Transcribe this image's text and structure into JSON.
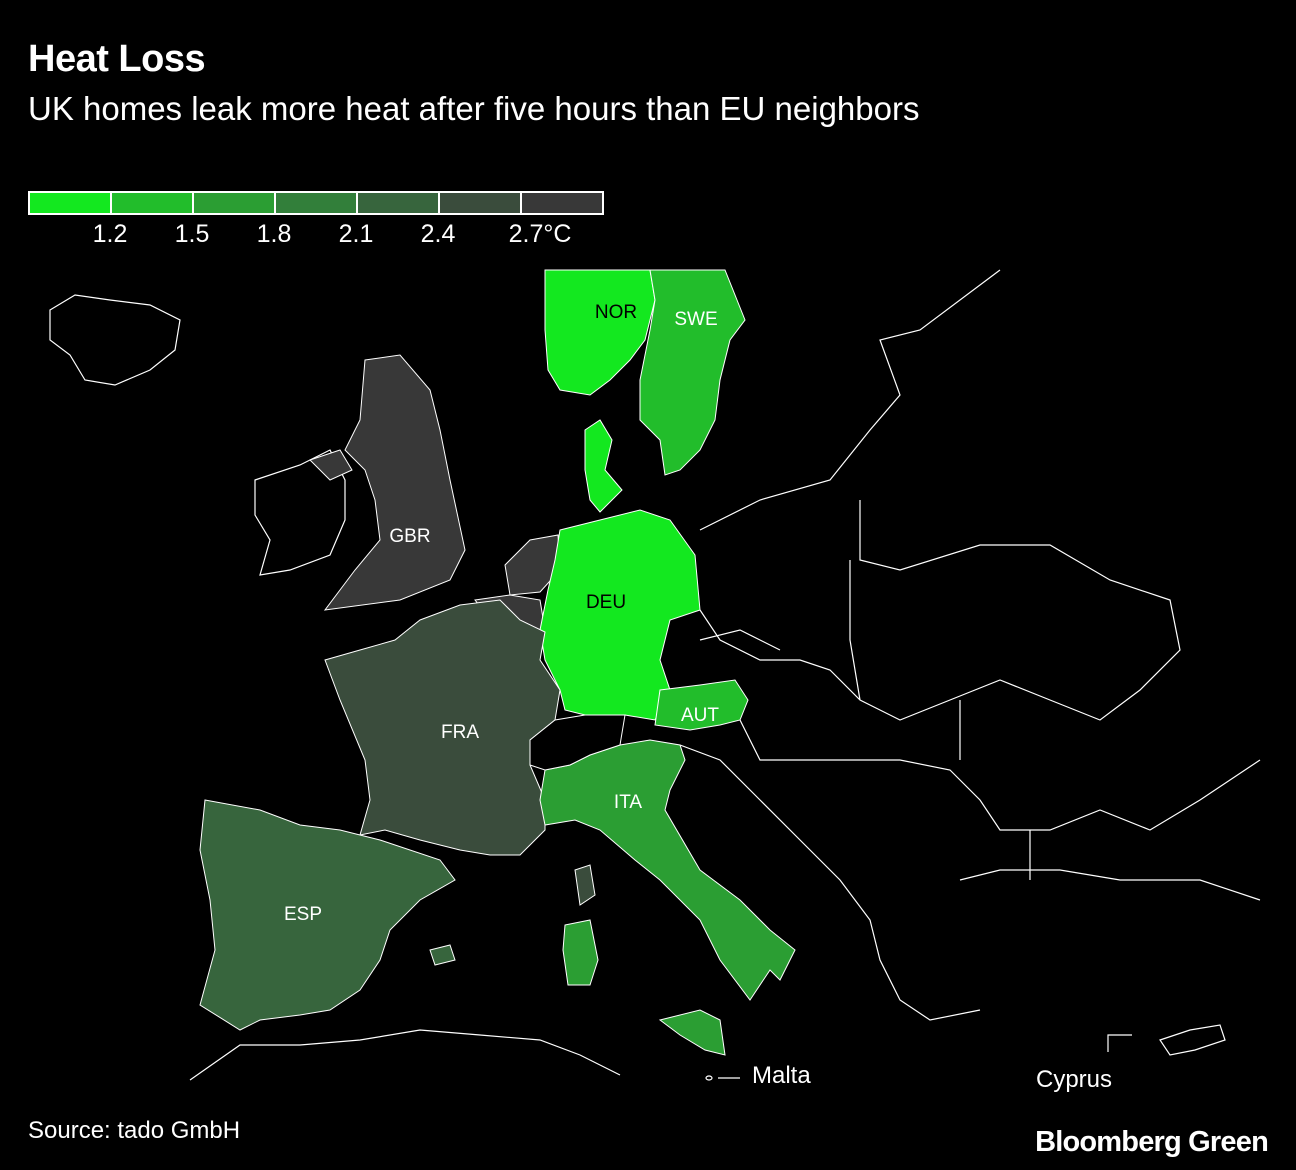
{
  "header": {
    "title": "Heat Loss",
    "subtitle": "UK homes leak more heat after five hours than EU neighbors"
  },
  "legend": {
    "colors": [
      "#13e81f",
      "#22bd2b",
      "#2b9e33",
      "#327f3a",
      "#37653d",
      "#3a4c3c",
      "#383838"
    ],
    "ticks": [
      "1.2",
      "1.5",
      "1.8",
      "2.1",
      "2.4",
      "2.7°C"
    ]
  },
  "map": {
    "countries": [
      {
        "code": "NOR",
        "bin": 0
      },
      {
        "code": "SWE",
        "bin": 1
      },
      {
        "code": "DNK",
        "bin": 0
      },
      {
        "code": "GBR",
        "bin": 6
      },
      {
        "code": "NLD",
        "bin": 6
      },
      {
        "code": "BEL",
        "bin": 6
      },
      {
        "code": "DEU",
        "bin": 0
      },
      {
        "code": "AUT",
        "bin": 1
      },
      {
        "code": "FRA",
        "bin": 5
      },
      {
        "code": "ITA",
        "bin": 2
      },
      {
        "code": "ESP",
        "bin": 4
      }
    ],
    "insets": [
      "Malta",
      "Cyprus"
    ]
  },
  "footer": {
    "source": "Source: tado GmbH",
    "brand": "Bloomberg Green"
  }
}
